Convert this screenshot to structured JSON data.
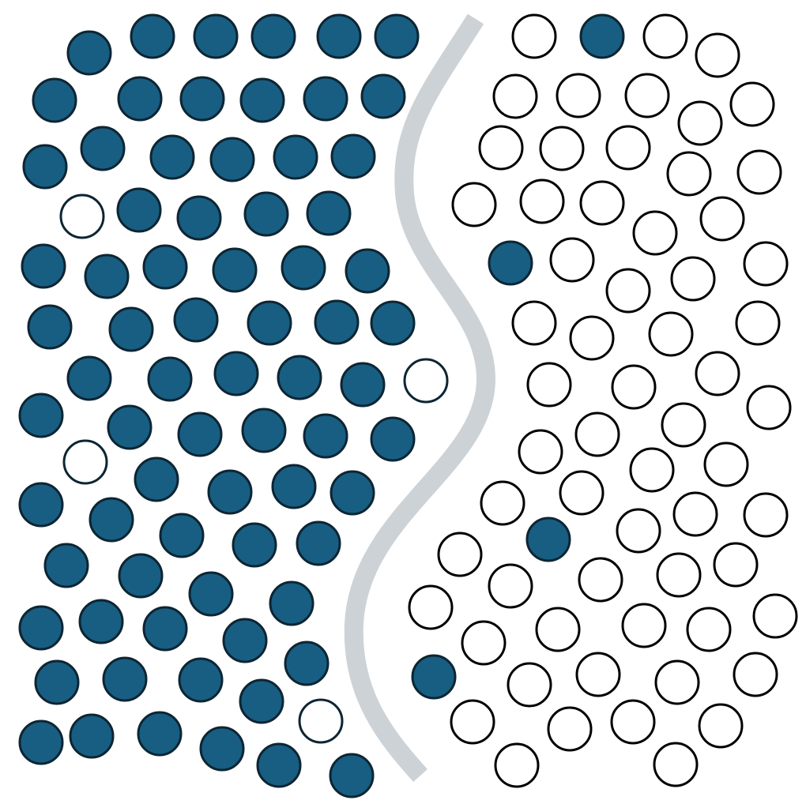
{
  "colors": {
    "background": "#ffffff",
    "filled": "#175e82",
    "filled_stroke": "#0d2533",
    "empty_fill": "#ffffff",
    "empty_stroke_left": "#0d2533",
    "empty_stroke_right": "#000000",
    "separator": "#cdd2d6"
  },
  "left_group": {
    "name": "left-cluster",
    "dots": [
      {
        "filled": true
      },
      {
        "filled": true
      },
      {
        "filled": true
      },
      {
        "filled": true
      },
      {
        "filled": true
      },
      {
        "filled": true
      },
      {
        "filled": true
      },
      {
        "filled": true
      },
      {
        "filled": true
      },
      {
        "filled": true
      },
      {
        "filled": true
      },
      {
        "filled": true
      },
      {
        "filled": true
      },
      {
        "filled": true
      },
      {
        "filled": true
      },
      {
        "filled": true
      },
      {
        "filled": true
      },
      {
        "filled": true
      },
      {
        "filled": false
      },
      {
        "filled": true
      },
      {
        "filled": true
      },
      {
        "filled": true
      },
      {
        "filled": true
      },
      {
        "filled": true
      },
      {
        "filled": true
      },
      {
        "filled": true
      },
      {
        "filled": true
      },
      {
        "filled": true
      },
      {
        "filled": true
      },
      {
        "filled": true
      },
      {
        "filled": true
      },
      {
        "filled": true
      },
      {
        "filled": true
      },
      {
        "filled": true
      },
      {
        "filled": true
      },
      {
        "filled": true
      },
      {
        "filled": true
      },
      {
        "filled": true
      },
      {
        "filled": true
      },
      {
        "filled": true
      },
      {
        "filled": false
      },
      {
        "filled": true
      },
      {
        "filled": true
      },
      {
        "filled": true
      },
      {
        "filled": true
      },
      {
        "filled": true
      },
      {
        "filled": true
      },
      {
        "filled": false
      },
      {
        "filled": true
      },
      {
        "filled": true
      },
      {
        "filled": true
      },
      {
        "filled": true
      },
      {
        "filled": true
      },
      {
        "filled": true
      },
      {
        "filled": true
      },
      {
        "filled": true
      },
      {
        "filled": true
      },
      {
        "filled": true
      },
      {
        "filled": true
      },
      {
        "filled": true
      },
      {
        "filled": true
      },
      {
        "filled": true
      },
      {
        "filled": true
      },
      {
        "filled": true
      },
      {
        "filled": true
      },
      {
        "filled": true
      },
      {
        "filled": true
      },
      {
        "filled": true
      },
      {
        "filled": true
      },
      {
        "filled": true
      },
      {
        "filled": true
      },
      {
        "filled": true
      },
      {
        "filled": true
      },
      {
        "filled": true
      },
      {
        "filled": true
      },
      {
        "filled": false
      },
      {
        "filled": true
      },
      {
        "filled": true
      },
      {
        "filled": false
      },
      {
        "filled": true
      }
    ]
  },
  "right_group": {
    "name": "right-cluster",
    "dots": [
      {
        "filled": false
      },
      {
        "filled": true
      },
      {
        "filled": false
      },
      {
        "filled": false
      },
      {
        "filled": false
      },
      {
        "filled": false
      },
      {
        "filled": false
      },
      {
        "filled": false
      },
      {
        "filled": false
      },
      {
        "filled": false
      },
      {
        "filled": false
      },
      {
        "filled": false
      },
      {
        "filled": false
      },
      {
        "filled": false
      },
      {
        "filled": false
      },
      {
        "filled": false
      },
      {
        "filled": false
      },
      {
        "filled": false
      },
      {
        "filled": false
      },
      {
        "filled": true
      },
      {
        "filled": false
      },
      {
        "filled": false
      },
      {
        "filled": false
      },
      {
        "filled": false
      },
      {
        "filled": false
      },
      {
        "filled": false
      },
      {
        "filled": false
      },
      {
        "filled": false
      },
      {
        "filled": false
      },
      {
        "filled": false
      },
      {
        "filled": false
      },
      {
        "filled": false
      },
      {
        "filled": false
      },
      {
        "filled": false
      },
      {
        "filled": false
      },
      {
        "filled": false
      },
      {
        "filled": false
      },
      {
        "filled": false
      },
      {
        "filled": false
      },
      {
        "filled": false
      },
      {
        "filled": false
      },
      {
        "filled": false
      },
      {
        "filled": false
      },
      {
        "filled": true
      },
      {
        "filled": false
      },
      {
        "filled": false
      },
      {
        "filled": false
      },
      {
        "filled": false
      },
      {
        "filled": false
      },
      {
        "filled": false
      },
      {
        "filled": false
      },
      {
        "filled": false
      },
      {
        "filled": false
      },
      {
        "filled": false
      },
      {
        "filled": true
      },
      {
        "filled": false
      },
      {
        "filled": false
      },
      {
        "filled": false
      },
      {
        "filled": false
      },
      {
        "filled": false
      },
      {
        "filled": false
      },
      {
        "filled": false
      },
      {
        "filled": false
      },
      {
        "filled": false
      },
      {
        "filled": false
      },
      {
        "filled": true
      }
    ]
  }
}
